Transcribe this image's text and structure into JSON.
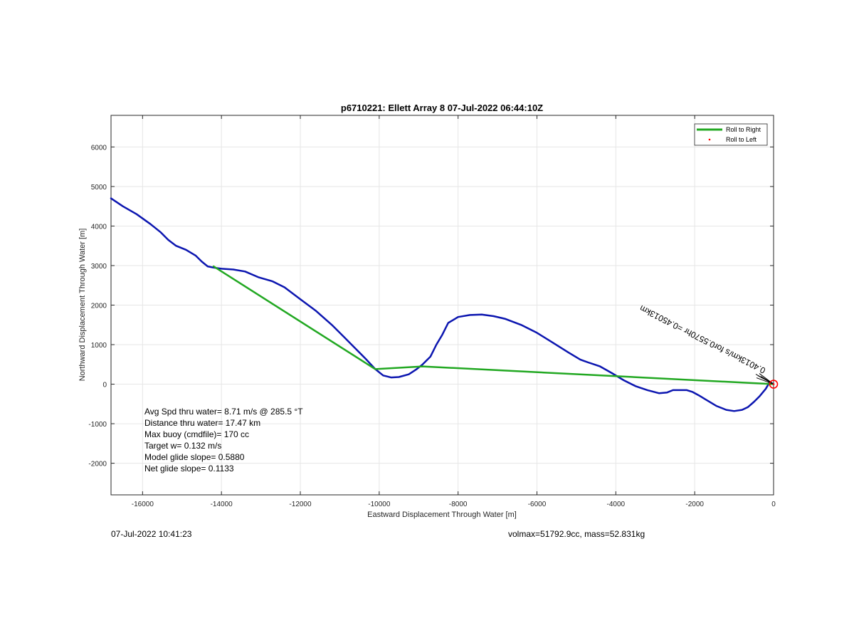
{
  "chart_data": {
    "type": "line",
    "title": "p6710221: Ellett Array 8 07-Jul-2022 06:44:10Z",
    "xlabel": "Eastward Displacement Through Water [m]",
    "ylabel": "Northward Displacement Through Water [m]",
    "xlim": [
      -16800,
      0
    ],
    "ylim": [
      -2800,
      6800
    ],
    "xticks": [
      -16000,
      -14000,
      -12000,
      -10000,
      -8000,
      -6000,
      -4000,
      -2000,
      0
    ],
    "yticks": [
      -2000,
      -1000,
      0,
      1000,
      2000,
      3000,
      4000,
      5000,
      6000
    ],
    "grid": true,
    "legend_placement": "top-right",
    "legend": [
      {
        "label": "Roll to Right",
        "color": "#22a822",
        "style": "line"
      },
      {
        "label": "Roll to Left",
        "color": "#ff0000",
        "style": "dot"
      }
    ],
    "series": [
      {
        "color": "#0c16b0",
        "x": [
          -16800,
          -16500,
          -16150,
          -15800,
          -15550,
          -15350,
          -15150,
          -14900,
          -14650,
          -14500,
          -14350,
          -14200,
          -14000,
          -13700,
          -13400,
          -13050,
          -12700,
          -12400,
          -12000,
          -11600,
          -11200,
          -10900,
          -10600,
          -10350,
          -10100,
          -9900,
          -9700,
          -9500,
          -9250,
          -9050,
          -8900,
          -8700,
          -8550,
          -8400,
          -8250,
          -8000,
          -7700,
          -7400,
          -7100,
          -6800,
          -6400,
          -6000,
          -5600,
          -5200,
          -4900,
          -4700,
          -4400,
          -4100,
          -3800,
          -3500,
          -3200,
          -2900,
          -2700,
          -2550,
          -2400,
          -2200,
          -2050,
          -1900,
          -1700,
          -1450,
          -1200,
          -1000,
          -800,
          -650,
          -500,
          -350,
          -200,
          -100,
          0
        ],
        "y": [
          4700,
          4500,
          4300,
          4050,
          3850,
          3650,
          3500,
          3400,
          3250,
          3100,
          2980,
          2950,
          2920,
          2900,
          2850,
          2700,
          2600,
          2450,
          2150,
          1850,
          1500,
          1200,
          900,
          650,
          380,
          220,
          170,
          180,
          250,
          380,
          500,
          700,
          1000,
          1250,
          1550,
          1700,
          1750,
          1760,
          1720,
          1650,
          1500,
          1300,
          1050,
          800,
          620,
          550,
          450,
          280,
          100,
          -50,
          -150,
          -230,
          -210,
          -150,
          -150,
          -150,
          -200,
          -280,
          -400,
          -550,
          -650,
          -680,
          -650,
          -580,
          -450,
          -300,
          -120,
          50,
          0
        ]
      },
      {
        "name": "Roll to Right",
        "color": "#22a822",
        "x": [
          -14200,
          -10100,
          -8900,
          0
        ],
        "y": [
          2980,
          380,
          450,
          0
        ]
      }
    ],
    "annotations": [
      {
        "text": "Avg Spd thru water=  8.71 m/s @ 285.5 °T"
      },
      {
        "text": "Distance thru water= 17.47 km"
      },
      {
        "text": "Max buoy (cmdfile)= 170 cc"
      },
      {
        "text": "Target w= 0.132 m/s"
      },
      {
        "text": "Model glide slope= 0.5880"
      },
      {
        "text": "Net glide slope= 0.1133"
      }
    ],
    "rotated_label": {
      "text": "0.4013km/s for0.5570hr =0.45013km",
      "x": -3350,
      "y": 2000
    },
    "end_marker": {
      "x": 0,
      "y": 0,
      "color": "#ff0000"
    }
  },
  "footer": {
    "timestamp": "07-Jul-2022 10:41:23",
    "volmax": "volmax=51792.9cc, mass=52.831kg"
  }
}
